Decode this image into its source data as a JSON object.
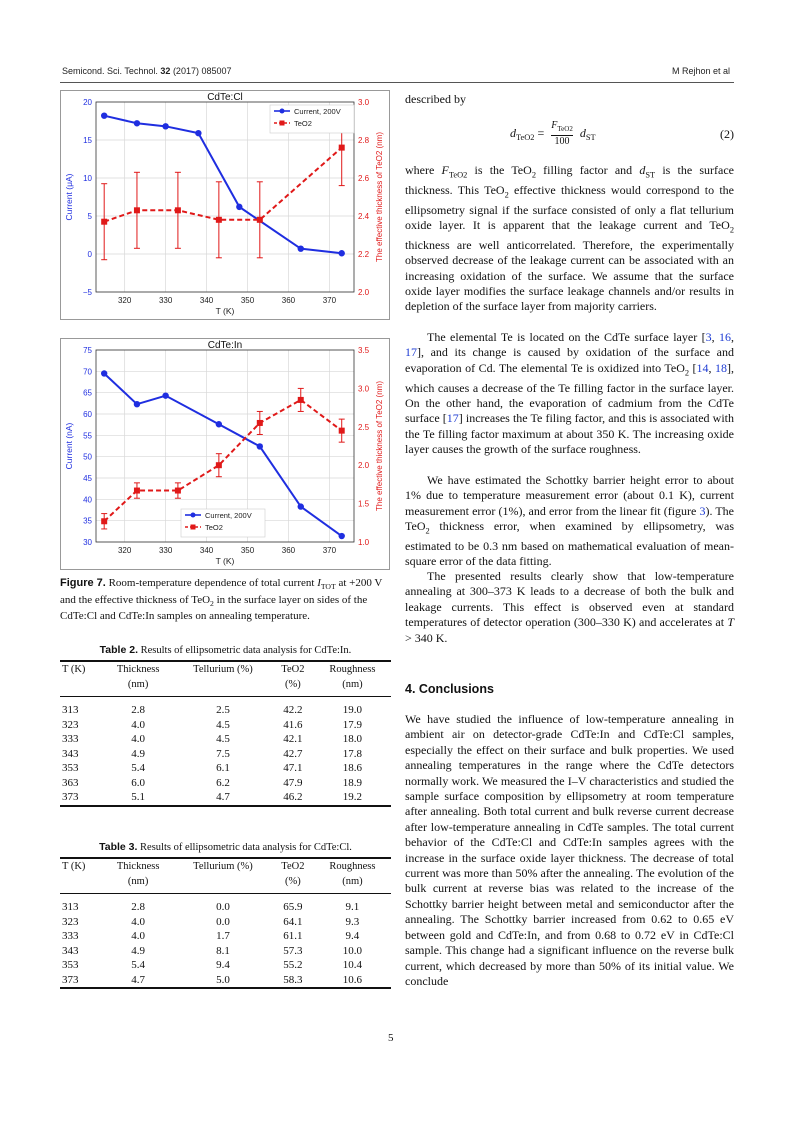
{
  "header": {
    "journal": "Semicond. Sci. Technol.",
    "volume": "32",
    "year_article": "(2017) 085007",
    "authors": "M Rejhon et al"
  },
  "right_column": {
    "p0": "described by",
    "eq_lhs": "d",
    "eq_lhs_sub": "TeO2",
    "eq_num": "F",
    "eq_num_sub": "TeO2",
    "eq_den": "100",
    "eq_rhs": "d",
    "eq_rhs_sub": "ST",
    "eq_label": "(2)",
    "p1_a": "where ",
    "p1_b": "F",
    "p1_c": "TeO2",
    "p1_d": " is the TeO",
    "p1_e": "2",
    "p1_f": " filling factor and ",
    "p1_g": "d",
    "p1_h": "ST",
    "p1_i": " is the surface thickness. This TeO",
    "p1_j": "2",
    "p1_k": " effective thickness would correspond to the ellipsometry signal if the surface consisted of only a flat tellurium oxide layer. It is apparent that the leakage current and TeO",
    "p1_l": "2",
    "p1_m": " thickness are well anticorrelated. Therefore, the experimentally observed decrease of the leakage current can be associated with an increasing oxidation of the surface. We assume that the surface oxide layer modifies the surface leakage channels and/or results in depletion of the surface layer from majority carriers.",
    "p2_a": "The elemental Te is located on the CdTe surface layer [",
    "p2_r1": "3",
    "p2_s1": ", ",
    "p2_r2": "16",
    "p2_s2": ", ",
    "p2_r3": "17",
    "p2_b": "], and its change is caused by oxidation of the surface and evaporation of Cd. The elemental Te is oxidized into TeO",
    "p2_c": "2",
    "p2_d": " [",
    "p2_r4": "14",
    "p2_s3": ", ",
    "p2_r5": "18",
    "p2_e": "], which causes a decrease of the Te filling factor in the surface layer. On the other hand, the evaporation of cadmium from the CdTe surface [",
    "p2_r6": "17",
    "p2_f": "] increases the Te filing factor, and this is associated with the Te filling factor maximum at about 350 K. The increasing oxide layer causes the growth of the surface roughness.",
    "p3_a": "We have estimated the Schottky barrier height error to about 1% due to temperature measurement error (about 0.1 K), current measurement error (1%), and error from the linear fit (figure ",
    "p3_r": "3",
    "p3_b": "). The TeO",
    "p3_c": "2",
    "p3_d": " thickness error, when examined by ellipsometry, was estimated to be 0.3 nm based on mathematical evaluation of mean-square error of the data fitting.",
    "p4_a": "The presented results clearly show that low-temperature annealing at 300–373 K leads to a decrease of both the bulk and leakage currents. This effect is observed even at standard temperatures of detector operation (300–330 K) and accelerates at ",
    "p4_b": "T",
    "p4_c": " > 340 K.",
    "section": "4. Conclusions",
    "p5": "We have studied the influence of low-temperature annealing in ambient air on detector-grade CdTe:In and CdTe:Cl samples, especially the effect on their surface and bulk properties. We used annealing temperatures in the range where the CdTe detectors normally work. We measured the I–V characteristics and studied the sample surface composition by ellipsometry at room temperature after annealing. Both total current and bulk reverse current decrease after low-temperature annealing in CdTe samples. The total current behavior of the CdTe:Cl and CdTe:In samples agrees with the increase in the surface oxide layer thickness. The decrease of total current was more than 50% after the annealing. The evolution of the bulk current at reverse bias was related to the increase of the Schottky barrier height between metal and semiconductor after the annealing. The Schottky barrier increased from 0.62 to 0.65 eV between gold and CdTe:In, and from 0.68 to 0.72 eV in CdTe:Cl sample. This change had a significant influence on the reverse bulk current, which decreased by more than 50% of its initial value. We conclude"
  },
  "caption": {
    "label": "Figure 7.",
    "text_a": " Room-temperature dependence of total current ",
    "text_b": "I",
    "text_c": "TOT",
    "text_d": " at +200 V and the effective thickness of TeO",
    "text_e": "2",
    "text_f": " in the surface layer on sides of the CdTe:Cl and CdTe:In samples on annealing temperature."
  },
  "table2": {
    "label": "Table 2.",
    "title": " Results of ellipsometric data analysis for CdTe:In.",
    "headers": [
      [
        "T (K)",
        ""
      ],
      [
        "Thickness",
        "(nm)"
      ],
      [
        "Tellurium (%)",
        ""
      ],
      [
        "TeO2",
        "(%)"
      ],
      [
        "Roughness",
        "(nm)"
      ]
    ],
    "rows": [
      [
        "313",
        "2.8",
        "2.5",
        "42.2",
        "19.0"
      ],
      [
        "323",
        "4.0",
        "4.5",
        "41.6",
        "17.9"
      ],
      [
        "333",
        "4.0",
        "4.5",
        "42.1",
        "18.0"
      ],
      [
        "343",
        "4.9",
        "7.5",
        "42.7",
        "17.8"
      ],
      [
        "353",
        "5.4",
        "6.1",
        "47.1",
        "18.6"
      ],
      [
        "363",
        "6.0",
        "6.2",
        "47.9",
        "18.9"
      ],
      [
        "373",
        "5.1",
        "4.7",
        "46.2",
        "19.2"
      ]
    ]
  },
  "table3": {
    "label": "Table 3.",
    "title": " Results of ellipsometric data analysis for CdTe:Cl.",
    "headers": [
      [
        "T (K)",
        ""
      ],
      [
        "Thickness",
        "(nm)"
      ],
      [
        "Tellurium (%)",
        ""
      ],
      [
        "TeO2",
        "(%)"
      ],
      [
        "Roughness",
        "(nm)"
      ]
    ],
    "rows": [
      [
        "313",
        "2.8",
        "0.0",
        "65.9",
        "9.1"
      ],
      [
        "323",
        "4.0",
        "0.0",
        "64.1",
        "9.3"
      ],
      [
        "333",
        "4.0",
        "1.7",
        "61.1",
        "9.4"
      ],
      [
        "343",
        "4.9",
        "8.1",
        "57.3",
        "10.0"
      ],
      [
        "353",
        "5.4",
        "9.4",
        "55.2",
        "10.4"
      ],
      [
        "373",
        "4.7",
        "5.0",
        "58.3",
        "10.6"
      ]
    ]
  },
  "page_number": "5",
  "chart_data": [
    {
      "type": "line",
      "title": "CdTe:Cl",
      "xlabel": "T (K)",
      "ylabel": "Current (μA)",
      "y2label": "The effective thickness of TeO2 (nm)",
      "xlim": [
        313,
        376
      ],
      "ylim": [
        -5,
        20
      ],
      "y2lim": [
        2.0,
        3.0
      ],
      "xticks": [
        "320",
        "330",
        "340",
        "350",
        "360",
        "370"
      ],
      "xtick_values": [
        320,
        330,
        340,
        350,
        360,
        370
      ],
      "yticks": [
        "−5",
        "0",
        "5",
        "10",
        "15",
        "20"
      ],
      "ytick_values": [
        -5,
        0,
        5,
        10,
        15,
        20
      ],
      "y2ticks": [
        "2.0",
        "2.2",
        "2.4",
        "2.6",
        "2.8",
        "3.0"
      ],
      "y2tick_values": [
        2.0,
        2.2,
        2.4,
        2.6,
        2.8,
        3.0
      ],
      "legend_position": "top-right",
      "grid": true,
      "series": [
        {
          "name": "Current, 200V",
          "axis": "left",
          "color": "#1f2ee0",
          "style": "solid",
          "marker": "circle",
          "x": [
            315,
            323,
            330,
            338,
            348,
            363,
            373
          ],
          "y": [
            18.2,
            17.2,
            16.8,
            15.9,
            6.2,
            0.7,
            0.1
          ]
        },
        {
          "name": "TeO2",
          "axis": "right",
          "color": "#e01919",
          "style": "dashed",
          "marker": "square",
          "x": [
            315,
            323,
            333,
            343,
            353,
            373
          ],
          "y": [
            2.37,
            2.43,
            2.43,
            2.38,
            2.38,
            2.76
          ],
          "err": [
            0.2,
            0.2,
            0.2,
            0.2,
            0.2,
            0.2
          ]
        }
      ]
    },
    {
      "type": "line",
      "title": "CdTe:In",
      "xlabel": "T (K)",
      "ylabel": "Current (nA)",
      "y2label": "The effective thickness of TeO2 (nm)",
      "xlim": [
        313,
        376
      ],
      "ylim": [
        30,
        75
      ],
      "y2lim": [
        1.0,
        3.5
      ],
      "xticks": [
        "320",
        "330",
        "340",
        "350",
        "360",
        "370"
      ],
      "xtick_values": [
        320,
        330,
        340,
        350,
        360,
        370
      ],
      "yticks": [
        "30",
        "35",
        "40",
        "45",
        "50",
        "55",
        "60",
        "65",
        "70",
        "75"
      ],
      "ytick_values": [
        30,
        35,
        40,
        45,
        50,
        55,
        60,
        65,
        70,
        75
      ],
      "y2ticks": [
        "1.0",
        "1.5",
        "2.0",
        "2.5",
        "3.0",
        "3.5"
      ],
      "y2tick_values": [
        1.0,
        1.5,
        2.0,
        2.5,
        3.0,
        3.5
      ],
      "legend_position": "bottom-center",
      "grid": true,
      "series": [
        {
          "name": "Current, 200V",
          "axis": "left",
          "color": "#1f2ee0",
          "style": "solid",
          "marker": "circle",
          "x": [
            315,
            323,
            330,
            343,
            353,
            363,
            373
          ],
          "y": [
            69.5,
            62.3,
            64.3,
            57.6,
            52.4,
            38.3,
            31.4
          ]
        },
        {
          "name": "TeO2",
          "axis": "right",
          "color": "#e01919",
          "style": "dashed",
          "marker": "square",
          "x": [
            315,
            323,
            333,
            343,
            353,
            363,
            373
          ],
          "y": [
            1.27,
            1.67,
            1.67,
            2.0,
            2.55,
            2.85,
            2.45
          ],
          "err": [
            0.1,
            0.1,
            0.1,
            0.15,
            0.15,
            0.15,
            0.15
          ]
        }
      ]
    }
  ]
}
